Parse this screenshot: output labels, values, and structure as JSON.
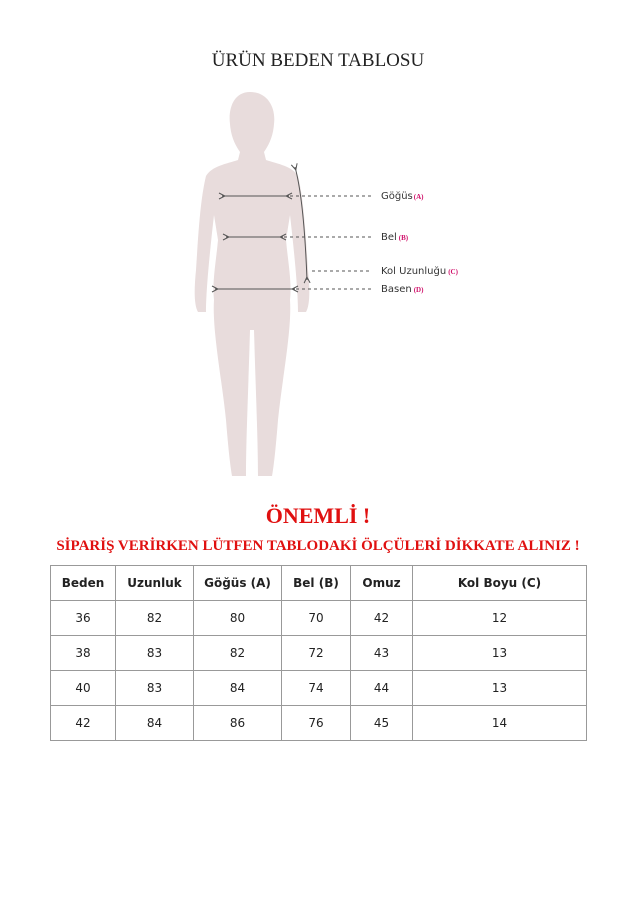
{
  "title": "ÜRÜN BEDEN TABLOSU",
  "figure": {
    "labels": [
      {
        "text": "Göğüs",
        "code": "(A)"
      },
      {
        "text": "Bel",
        "code": "(B)"
      },
      {
        "text": "Kol Uzunluğu",
        "code": "(C)"
      },
      {
        "text": "Basen",
        "code": "(D)"
      }
    ],
    "silhouette_color": "#e8dcdc"
  },
  "important": "ÖNEMLİ !",
  "warning": "SİPARİŞ VERİRKEN LÜTFEN TABLODAKİ ÖLÇÜLERİ DİKKATE ALINIZ !",
  "accent_color": "#e01010",
  "table": {
    "headers": [
      "Beden",
      "Uzunluk",
      "Göğüs (A)",
      "Bel (B)",
      "Omuz",
      "Kol Boyu (C)"
    ],
    "rows": [
      [
        "36",
        "82",
        "80",
        "70",
        "42",
        "12"
      ],
      [
        "38",
        "83",
        "82",
        "72",
        "43",
        "13"
      ],
      [
        "40",
        "83",
        "84",
        "74",
        "44",
        "13"
      ],
      [
        "42",
        "84",
        "86",
        "76",
        "45",
        "14"
      ]
    ]
  }
}
